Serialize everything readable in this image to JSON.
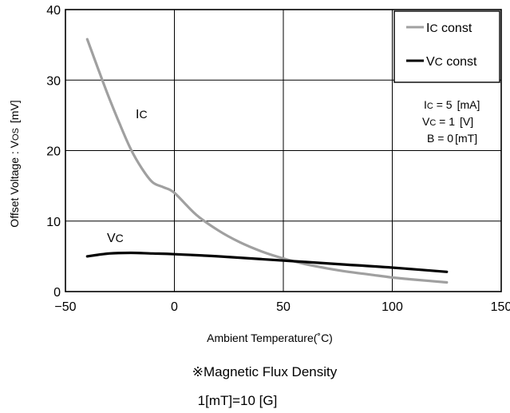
{
  "chart_data": {
    "type": "line",
    "title": "",
    "xlabel": "Ambient Temperature(˚C)",
    "ylabel": "Offset Voltage : V",
    "ylabel_sub": "OS",
    "ylabel_unit": "[mV]",
    "xlim": [
      -50,
      150
    ],
    "ylim": [
      0,
      40
    ],
    "xticks": [
      -50,
      0,
      50,
      100,
      150
    ],
    "yticks": [
      0,
      10,
      20,
      30,
      40
    ],
    "xtick_labels": [
      "−50",
      "0",
      "50",
      "100",
      "150"
    ],
    "ytick_labels": [
      "0",
      "10",
      "20",
      "30",
      "40"
    ],
    "grid": true,
    "series": [
      {
        "name": "Ic const",
        "label_main": "I",
        "label_sub": "C",
        "legend_text": " const",
        "color": "#a0a0a0",
        "x": [
          -40,
          -35,
          -30,
          -25,
          -20,
          -15,
          -10,
          -5,
          0,
          10,
          20,
          30,
          40,
          50,
          60,
          70,
          80,
          90,
          100,
          110,
          125
        ],
        "y": [
          35.8,
          31.6,
          27.5,
          23.7,
          20.2,
          17.5,
          15.5,
          14.8,
          14.0,
          10.9,
          8.7,
          7.0,
          5.7,
          4.7,
          3.9,
          3.3,
          2.8,
          2.4,
          2.0,
          1.7,
          1.3
        ]
      },
      {
        "name": "Vc const",
        "label_main": "V",
        "label_sub": "C",
        "legend_text": " const",
        "color": "#000000",
        "x": [
          -40,
          -30,
          -20,
          -10,
          0,
          20,
          40,
          60,
          80,
          100,
          125
        ],
        "y": [
          5.0,
          5.4,
          5.5,
          5.4,
          5.3,
          5.0,
          4.6,
          4.2,
          3.8,
          3.4,
          2.8
        ]
      }
    ],
    "conditions": [
      {
        "main": "I",
        "sub": "C",
        "eq": " = 5",
        "unit": "[mA]"
      },
      {
        "main": "V",
        "sub": "C",
        "eq": " = 1",
        "unit": "[V]"
      },
      {
        "main": "B",
        "sub": "",
        "eq": " = 0",
        "unit": "[mT]"
      }
    ],
    "legend_position": "top-right"
  },
  "notes": {
    "line1": "※Magnetic Flux Density",
    "line2": "1[mT]=10 [G]"
  },
  "colors": {
    "axis": "#000000",
    "grid": "#000000",
    "ic_line": "#a0a0a0",
    "vc_line": "#000000"
  }
}
